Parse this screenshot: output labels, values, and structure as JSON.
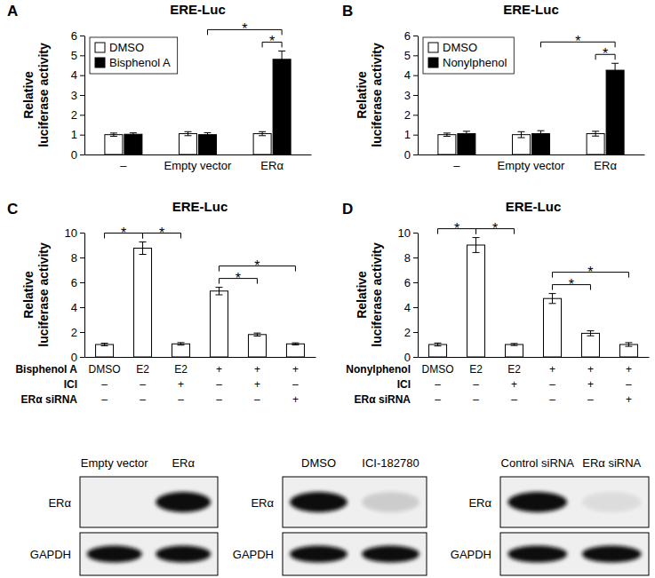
{
  "chart_data": [
    {
      "type": "bar",
      "panel": "A",
      "title": "ERE-Luc",
      "y_label": "Relative\nluciferase activity",
      "categories": [
        "–",
        "Empty vector",
        "ERα"
      ],
      "series": [
        {
          "name": "DMSO",
          "color": "#ffffff",
          "values": [
            1.0,
            1.05,
            1.05
          ],
          "errors": [
            0.08,
            0.1,
            0.1
          ]
        },
        {
          "name": "Bisphenol A",
          "color": "#000000",
          "values": [
            1.02,
            1.0,
            4.8
          ],
          "errors": [
            0.07,
            0.1,
            0.42
          ]
        }
      ],
      "ylim": [
        0,
        6
      ],
      "yticks": [
        0,
        1,
        2,
        3,
        4,
        5,
        6
      ],
      "legend": "upper left",
      "significance": [
        {
          "label": "*",
          "between": [
            [
              1,
              1
            ],
            [
              2,
              1
            ]
          ]
        },
        {
          "label": "*",
          "between": [
            [
              2,
              0
            ],
            [
              2,
              1
            ]
          ]
        }
      ]
    },
    {
      "type": "bar",
      "panel": "B",
      "title": "ERE-Luc",
      "y_label": "Relative\nluciferase activity",
      "categories": [
        "–",
        "Empty vector",
        "ERα"
      ],
      "series": [
        {
          "name": "DMSO",
          "color": "#ffffff",
          "values": [
            1.0,
            1.0,
            1.05
          ],
          "errors": [
            0.08,
            0.15,
            0.12
          ]
        },
        {
          "name": "Nonylphenol",
          "color": "#000000",
          "values": [
            1.05,
            1.05,
            4.25
          ],
          "errors": [
            0.12,
            0.15,
            0.35
          ]
        }
      ],
      "ylim": [
        0,
        6
      ],
      "yticks": [
        0,
        1,
        2,
        3,
        4,
        5,
        6
      ],
      "legend": "upper left",
      "significance": [
        {
          "label": "*",
          "between": [
            [
              1,
              1
            ],
            [
              2,
              1
            ]
          ]
        },
        {
          "label": "*",
          "between": [
            [
              2,
              0
            ],
            [
              2,
              1
            ]
          ]
        }
      ]
    },
    {
      "type": "bar",
      "panel": "C",
      "title": "ERE-Luc",
      "y_label": "Relative\nluciferase activity",
      "categories": [
        null,
        null,
        null,
        null,
        null,
        null
      ],
      "series": [
        {
          "color": "#ffffff",
          "values": [
            1.0,
            8.75,
            1.05,
            5.3,
            1.8,
            1.05
          ],
          "errors": [
            0.1,
            0.5,
            0.1,
            0.3,
            0.12,
            0.08
          ]
        }
      ],
      "ylim": [
        0,
        10
      ],
      "yticks": [
        0,
        2,
        4,
        6,
        8,
        10
      ],
      "significance": [
        {
          "label": "*",
          "between": [
            [
              0,
              0
            ],
            [
              1,
              0
            ]
          ]
        },
        {
          "label": "*",
          "between": [
            [
              1,
              0
            ],
            [
              2,
              0
            ]
          ]
        },
        {
          "label": "*",
          "between": [
            [
              3,
              0
            ],
            [
              4,
              0
            ]
          ]
        },
        {
          "label": "*",
          "between": [
            [
              3,
              0
            ],
            [
              5,
              0
            ]
          ]
        }
      ],
      "condition_rows": [
        {
          "label": "Bisphenol A",
          "values": [
            "DMSO",
            "E2",
            "E2",
            "+",
            "+",
            "+"
          ]
        },
        {
          "label": "ICI",
          "values": [
            "–",
            "–",
            "+",
            "–",
            "+",
            "–"
          ]
        },
        {
          "label": "ERα siRNA",
          "values": [
            "–",
            "–",
            "–",
            "–",
            "–",
            "+"
          ]
        }
      ]
    },
    {
      "type": "bar",
      "panel": "D",
      "title": "ERE-Luc",
      "y_label": "Relative\nluciferase activity",
      "categories": [
        null,
        null,
        null,
        null,
        null,
        null
      ],
      "series": [
        {
          "color": "#ffffff",
          "values": [
            1.0,
            9.0,
            1.0,
            4.7,
            1.9,
            1.0
          ],
          "errors": [
            0.12,
            0.6,
            0.08,
            0.4,
            0.2,
            0.15
          ]
        }
      ],
      "ylim": [
        0,
        10
      ],
      "yticks": [
        0,
        2,
        4,
        6,
        8,
        10
      ],
      "significance": [
        {
          "label": "*",
          "between": [
            [
              0,
              0
            ],
            [
              1,
              0
            ]
          ]
        },
        {
          "label": "*",
          "between": [
            [
              1,
              0
            ],
            [
              2,
              0
            ]
          ]
        },
        {
          "label": "*",
          "between": [
            [
              3,
              0
            ],
            [
              4,
              0
            ]
          ]
        },
        {
          "label": "*",
          "between": [
            [
              3,
              0
            ],
            [
              5,
              0
            ]
          ]
        }
      ],
      "condition_rows": [
        {
          "label": "Nonylphenol",
          "values": [
            "DMSO",
            "E2",
            "E2",
            "+",
            "+",
            "+"
          ]
        },
        {
          "label": "ICI",
          "values": [
            "–",
            "–",
            "+",
            "–",
            "+",
            "–"
          ]
        },
        {
          "label": "ERα siRNA",
          "values": [
            "–",
            "–",
            "–",
            "–",
            "–",
            "+"
          ]
        }
      ]
    }
  ],
  "blots": [
    {
      "lanes": [
        "Empty vector",
        "ERα"
      ],
      "rows": [
        {
          "label": "ERα",
          "intensity": [
            0,
            1
          ]
        },
        {
          "label": "GAPDH",
          "intensity": [
            1,
            1
          ]
        }
      ]
    },
    {
      "lanes": [
        "DMSO",
        "ICI-182780"
      ],
      "rows": [
        {
          "label": "ERα",
          "intensity": [
            1,
            0.15
          ]
        },
        {
          "label": "GAPDH",
          "intensity": [
            1,
            1
          ]
        }
      ]
    },
    {
      "lanes": [
        "Control siRNA",
        "ERα siRNA"
      ],
      "rows": [
        {
          "label": "ERα",
          "intensity": [
            1,
            0.08
          ]
        },
        {
          "label": "GAPDH",
          "intensity": [
            1,
            1
          ]
        }
      ]
    }
  ]
}
